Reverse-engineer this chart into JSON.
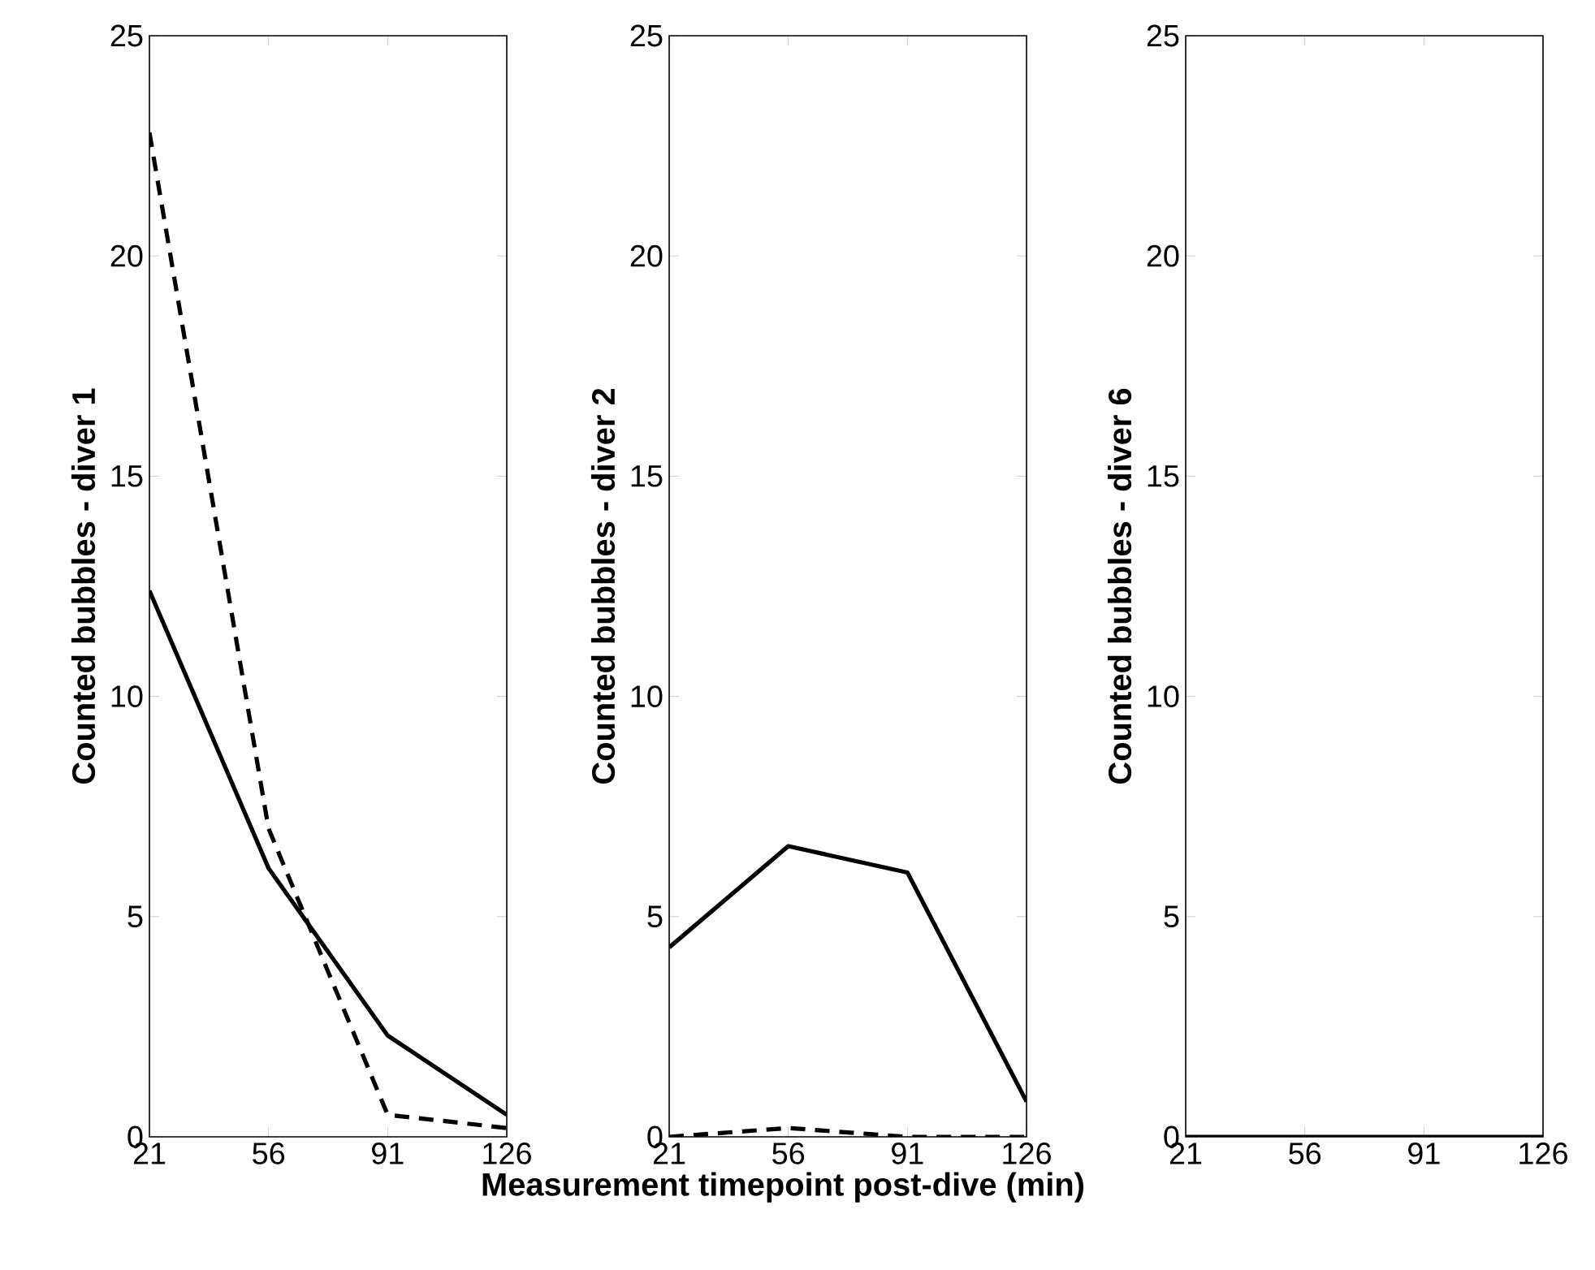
{
  "chart_data": [
    {
      "type": "line",
      "x": [
        21,
        56,
        91,
        126
      ],
      "ylabel": "Counted bubbles - diver 1",
      "xlim": [
        21,
        126
      ],
      "xticks": [
        21,
        56,
        91,
        126
      ],
      "ylim": [
        0,
        25
      ],
      "yticks": [
        0,
        5,
        10,
        15,
        20,
        25
      ],
      "series": [
        {
          "color": "#000000",
          "line_style": "solid",
          "values": [
            12.4,
            6.1,
            2.3,
            0.5
          ]
        },
        {
          "color": "#000000",
          "line_style": "dashed",
          "values": [
            22.8,
            7.0,
            0.5,
            0.2
          ]
        }
      ]
    },
    {
      "type": "line",
      "x": [
        21,
        56,
        91,
        126
      ],
      "ylabel": "Counted bubbles - diver 2",
      "xlabel": "Measurement timepoint post-dive (min)",
      "xlim": [
        21,
        126
      ],
      "xticks": [
        21,
        56,
        91,
        126
      ],
      "ylim": [
        0,
        25
      ],
      "yticks": [
        0,
        5,
        10,
        15,
        20,
        25
      ],
      "series": [
        {
          "color": "#000000",
          "line_style": "solid",
          "values": [
            4.3,
            6.6,
            6.0,
            0.8
          ]
        },
        {
          "color": "#000000",
          "line_style": "dashed",
          "values": [
            0,
            0.2,
            0,
            0
          ]
        }
      ]
    },
    {
      "type": "line",
      "x": [
        21,
        56,
        91,
        126
      ],
      "ylabel": "Counted bubbles - diver 6",
      "xlim": [
        21,
        126
      ],
      "xticks": [
        21,
        56,
        91,
        126
      ],
      "ylim": [
        0,
        25
      ],
      "yticks": [
        0,
        5,
        10,
        15,
        20,
        25
      ],
      "series": [
        {
          "color": "#000000",
          "line_style": "solid",
          "values": [
            0,
            0,
            0,
            0
          ]
        }
      ]
    }
  ]
}
